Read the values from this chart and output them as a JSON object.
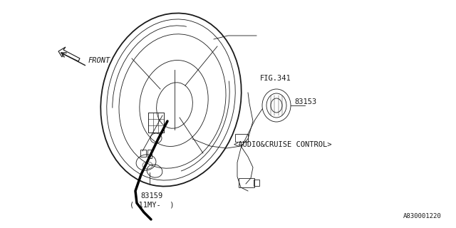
{
  "bg_color": "#ffffff",
  "line_color": "#1a1a1a",
  "fig_width": 6.4,
  "fig_height": 3.2,
  "dpi": 100,
  "labels": {
    "fig341": "FIG.341",
    "part83153": "83153",
    "audio_cruise": "<AUDIO&CRUISE CONTROL>",
    "part83159": "83159",
    "model_year": "('11MY-  )",
    "front": "FRONT",
    "watermark": "A830001220"
  }
}
